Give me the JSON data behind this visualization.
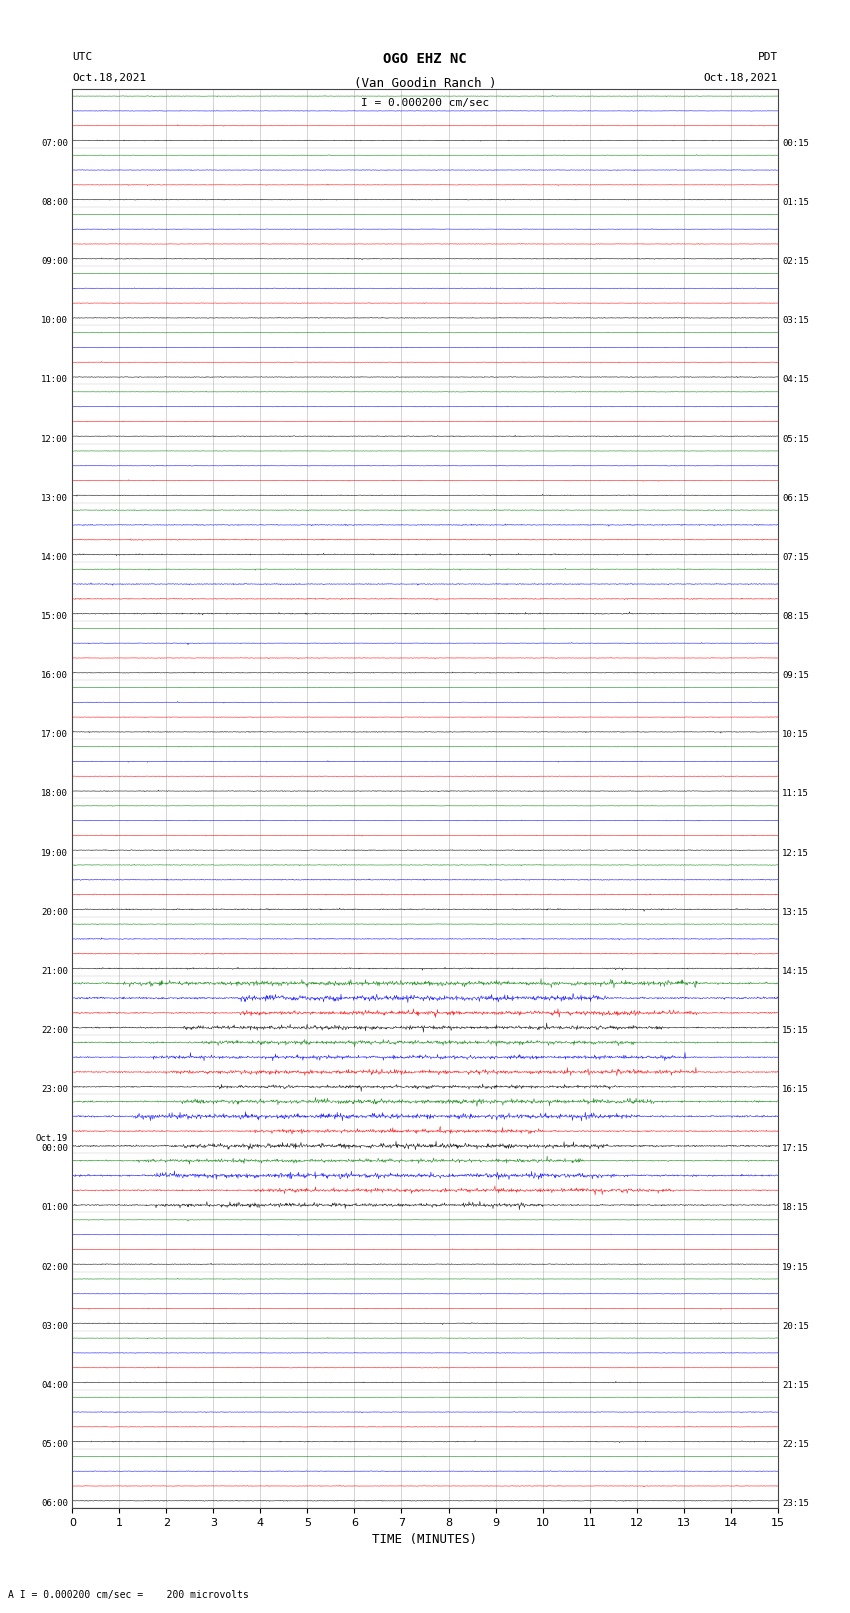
{
  "title_line1": "OGO EHZ NC",
  "title_line2": "(Van Goodin Ranch )",
  "scale_text": "I = 0.000200 cm/sec",
  "bottom_text": "A I = 0.000200 cm/sec =    200 microvolts",
  "left_label": "UTC\nOct.18,2021",
  "right_label": "PDT\nOct.18,2021",
  "xlabel": "TIME (MINUTES)",
  "left_times": [
    "07:00",
    "08:00",
    "09:00",
    "10:00",
    "11:00",
    "12:00",
    "13:00",
    "14:00",
    "15:00",
    "16:00",
    "17:00",
    "18:00",
    "19:00",
    "20:00",
    "21:00",
    "22:00",
    "23:00",
    "Oct.19\n00:00",
    "01:00",
    "02:00",
    "03:00",
    "04:00",
    "05:00",
    "06:00"
  ],
  "right_times": [
    "00:15",
    "01:15",
    "02:15",
    "03:15",
    "04:15",
    "05:15",
    "06:15",
    "07:15",
    "08:15",
    "09:15",
    "10:15",
    "11:15",
    "12:15",
    "13:15",
    "14:15",
    "15:15",
    "16:15",
    "17:15",
    "18:15",
    "19:15",
    "20:15",
    "21:15",
    "22:15",
    "23:15"
  ],
  "n_rows": 24,
  "x_min": 0,
  "x_max": 15,
  "x_ticks": [
    0,
    1,
    2,
    3,
    4,
    5,
    6,
    7,
    8,
    9,
    10,
    11,
    12,
    13,
    14,
    15
  ],
  "bg_color": "#ffffff",
  "grid_color": "#aaaaaa",
  "trace_colors": [
    "black",
    "red",
    "blue",
    "green"
  ],
  "fig_width": 8.5,
  "fig_height": 16.13,
  "dpi": 100
}
